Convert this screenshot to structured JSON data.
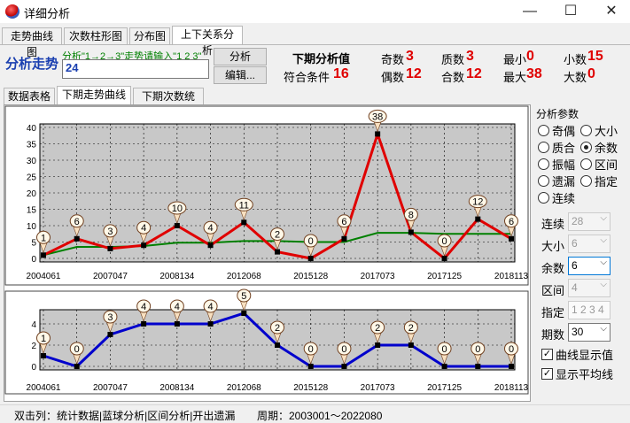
{
  "window": {
    "title": "详细分析",
    "minimize": "—",
    "maximize": "☐",
    "close": "✕"
  },
  "top_tabs": [
    "走势曲线图",
    "次数柱形图",
    "分布图",
    "上下关系分析"
  ],
  "analysis": {
    "label": "分析走势",
    "hint": "分析\"1→2→3\"走势请输入\"1 2 3\"",
    "input_value": "24",
    "analyze_button": "分析",
    "edit_button": "编辑..."
  },
  "next_stats": {
    "header": "下期分析值",
    "match_label": "符合条件",
    "match_value": "16",
    "odd_label": "奇数",
    "odd_value": "3",
    "even_label": "偶数",
    "even_value": "12",
    "prime_label": "质数",
    "prime_value": "3",
    "composite_label": "合数",
    "composite_value": "12",
    "min_label": "最小",
    "min_value": "0",
    "max_label": "最大",
    "max_value": "38",
    "small_label": "小数",
    "small_value": "15",
    "big_label": "大数",
    "big_value": "0"
  },
  "sub_tabs": [
    "数据表格",
    "下期走势曲线",
    "下期次数统计"
  ],
  "side": {
    "group_title": "分析参数",
    "radios": [
      "奇偶",
      "大小",
      "质合",
      "余数",
      "振幅",
      "区间",
      "遗漏",
      "指定",
      "连续"
    ],
    "selected_radio": "余数",
    "fields": {
      "lianxu_label": "连续",
      "lianxu_value": "28",
      "daxiao_label": "大小",
      "daxiao_value": "6",
      "yushu_label": "余数",
      "yushu_value": "6",
      "qujian_label": "区间",
      "qujian_value": "4",
      "zhiding_label": "指定",
      "zhiding_placeholder": "1 2 3 4",
      "qishu_label": "期数",
      "qishu_value": "30"
    },
    "check_show_values": "曲线显示值",
    "check_show_average": "显示平均线"
  },
  "status": {
    "left": "双击列：统计数据|蓝球分析|区间分析|开出遗漏",
    "right": "周期：2003001～2022080"
  },
  "colors": {
    "series_red": "#e00000",
    "series_green": "#008000",
    "series_blue": "#0000cc",
    "accent_blue": "#1a3fb0"
  },
  "chart_data": [
    {
      "type": "line",
      "x_tick_labels": [
        "2004061",
        "2007047",
        "2008134",
        "2012068",
        "2015128",
        "2017073",
        "2017125",
        "2018113"
      ],
      "series": [
        {
          "values": [
            1,
            6,
            3,
            4,
            10,
            4,
            11,
            2,
            0,
            6,
            38,
            8,
            0,
            12,
            6
          ]
        },
        {
          "values": [
            1,
            3.5,
            3.5,
            3.8,
            4.8,
            4.8,
            5.3,
            5.3,
            5.0,
            5.0,
            7.8,
            7.8,
            7.5,
            7.5,
            7.5
          ]
        }
      ],
      "ylim": [
        0,
        40
      ],
      "yticks": [
        0,
        5,
        10,
        15,
        20,
        25,
        30,
        35,
        40
      ],
      "grid": true
    },
    {
      "type": "line",
      "x_tick_labels": [
        "2004061",
        "2007047",
        "2008134",
        "2012068",
        "2015128",
        "2017073",
        "2017125",
        "2018113"
      ],
      "series": [
        {
          "values": [
            1,
            0,
            3,
            4,
            4,
            4,
            5,
            2,
            0,
            0,
            2,
            2,
            0,
            0,
            0
          ]
        }
      ],
      "ylim": [
        0,
        5
      ],
      "yticks": [
        0,
        2,
        4
      ],
      "grid": true
    }
  ]
}
